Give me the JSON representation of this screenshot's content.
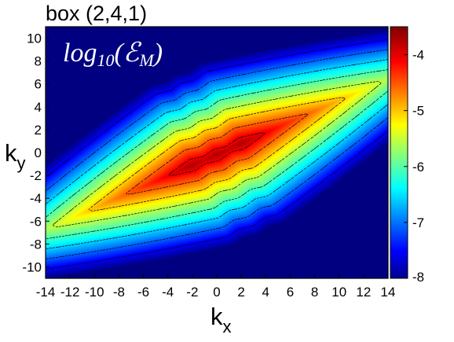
{
  "chart_data": {
    "type": "heatmap",
    "title": "box (2,4,1)",
    "annotation": {
      "prefix": "log",
      "sub": "10",
      "open": "(ℰ",
      "sub2": "M",
      "close": ")"
    },
    "xlabel": {
      "main": "k",
      "sub": "x"
    },
    "ylabel": {
      "main": "k",
      "sub": "y"
    },
    "xlim": [
      -14,
      14
    ],
    "ylim": [
      -11,
      11
    ],
    "xticks": [
      -14,
      -12,
      -10,
      -8,
      -6,
      -4,
      -2,
      0,
      2,
      4,
      6,
      8,
      10,
      12,
      14
    ],
    "yticks": [
      -10,
      -8,
      -6,
      -4,
      -2,
      0,
      2,
      4,
      6,
      8,
      10
    ],
    "colorbar": {
      "range": [
        -8,
        -3.5
      ],
      "ticks": [
        -8,
        -7,
        -6,
        -5,
        -4
      ],
      "colormap": "jet"
    },
    "field": {
      "peak_value": -3.7,
      "peak_centers": [
        [
          -2,
          -1.1
        ],
        [
          0,
          -0.2
        ],
        [
          2,
          0.8
        ]
      ],
      "ridge_slope": 0.47,
      "along_axis_decay": 0.12,
      "cross_axis_decay": 0.55,
      "floor_value": -8
    },
    "contour_levels": [
      -7.5,
      -7,
      -6.5,
      -6,
      -5.5,
      -5,
      -4.5,
      -4
    ],
    "grid": false,
    "legend": "none"
  }
}
